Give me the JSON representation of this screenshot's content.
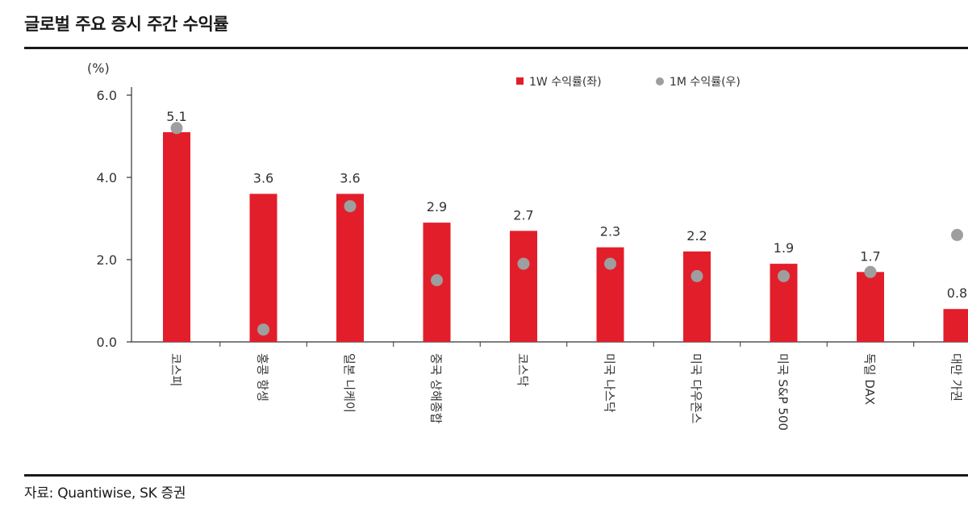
{
  "title": "글로벌 주요 증시 주간 수익률",
  "source": "자료: Quantiwise, SK 증권",
  "colors": {
    "bar": "#e31e2b",
    "dot": "#9e9e9e",
    "axis": "#333333"
  },
  "chart_data": {
    "type": "bar",
    "unit_label": "(%)",
    "categories": [
      "코스피",
      "홍콩 항셍",
      "일본 니케이",
      "중국 상해종합",
      "코스닥",
      "미국 나스닥",
      "미국 다우존스",
      "미국 S&P 500",
      "독일 DAX",
      "대만 가권"
    ],
    "series": [
      {
        "name": "1W 수익률(좌)",
        "kind": "bar",
        "values": [
          5.1,
          3.6,
          3.6,
          2.9,
          2.7,
          2.3,
          2.2,
          1.9,
          1.7,
          0.8
        ]
      },
      {
        "name": "1M 수익률(우)",
        "kind": "dot",
        "values": [
          5.2,
          0.3,
          3.3,
          1.5,
          1.9,
          1.9,
          1.6,
          1.6,
          1.7,
          2.6
        ]
      }
    ],
    "data_labels": [
      "5.1",
      "3.6",
      "3.6",
      "2.9",
      "2.7",
      "2.3",
      "2.2",
      "1.9",
      "1.7",
      "0.8"
    ],
    "y_ticks": [
      "0.0",
      "2.0",
      "4.0",
      "6.0"
    ],
    "ylim": [
      0,
      6
    ],
    "legend_position": "top-right"
  }
}
